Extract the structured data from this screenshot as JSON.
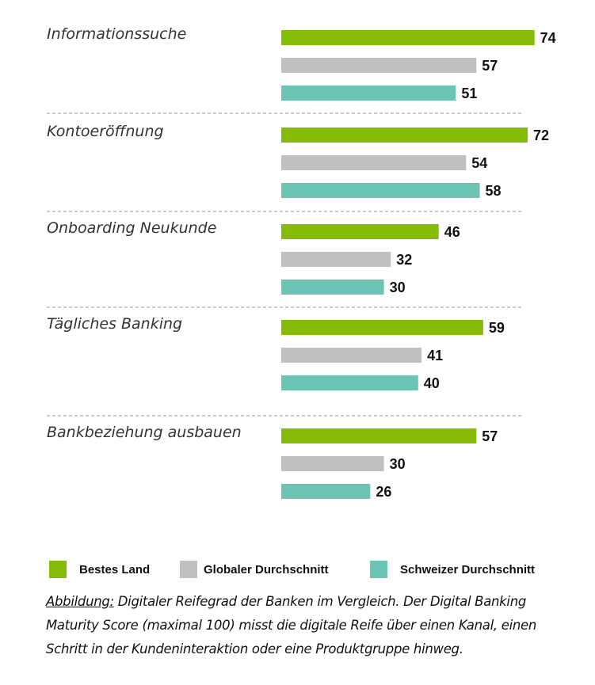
{
  "chart_data": {
    "type": "bar",
    "orientation": "horizontal",
    "title": "",
    "xlabel": "",
    "ylabel": "",
    "xlim": [
      0,
      100
    ],
    "grid": false,
    "legend_position": "bottom",
    "categories": [
      "Informationssuche",
      "Kontoeröffnung",
      "Onboarding Neukunde",
      "Tägliches Banking",
      "Bankbeziehung ausbauen"
    ],
    "series": [
      {
        "name": "Bestes Land",
        "color": "#86bc07",
        "values": [
          74,
          72,
          46,
          59,
          57
        ]
      },
      {
        "name": "Globaler Durchschnitt",
        "color": "#c0c0c0",
        "values": [
          57,
          54,
          32,
          41,
          30
        ]
      },
      {
        "name": "Schweizer Durchschnitt",
        "color": "#6cc4b4",
        "values": [
          51,
          58,
          30,
          40,
          26
        ]
      }
    ]
  },
  "legend": {
    "items": [
      {
        "label": "Bestes Land",
        "color": "#86bc07"
      },
      {
        "label": "Globaler Durchschnitt",
        "color": "#c0c0c0"
      },
      {
        "label": "Schweizer Durchschnitt",
        "color": "#6cc4b4"
      }
    ]
  },
  "caption": {
    "lead": "Abbildung:",
    "text": " Digitaler Reifegrad der Banken im Vergleich. Der Digital Banking Maturity Score (maximal 100) misst die digitale Reife über einen Kanal, einen Schritt in der Kundeninteraktion oder eine Produktgruppe hinweg."
  }
}
